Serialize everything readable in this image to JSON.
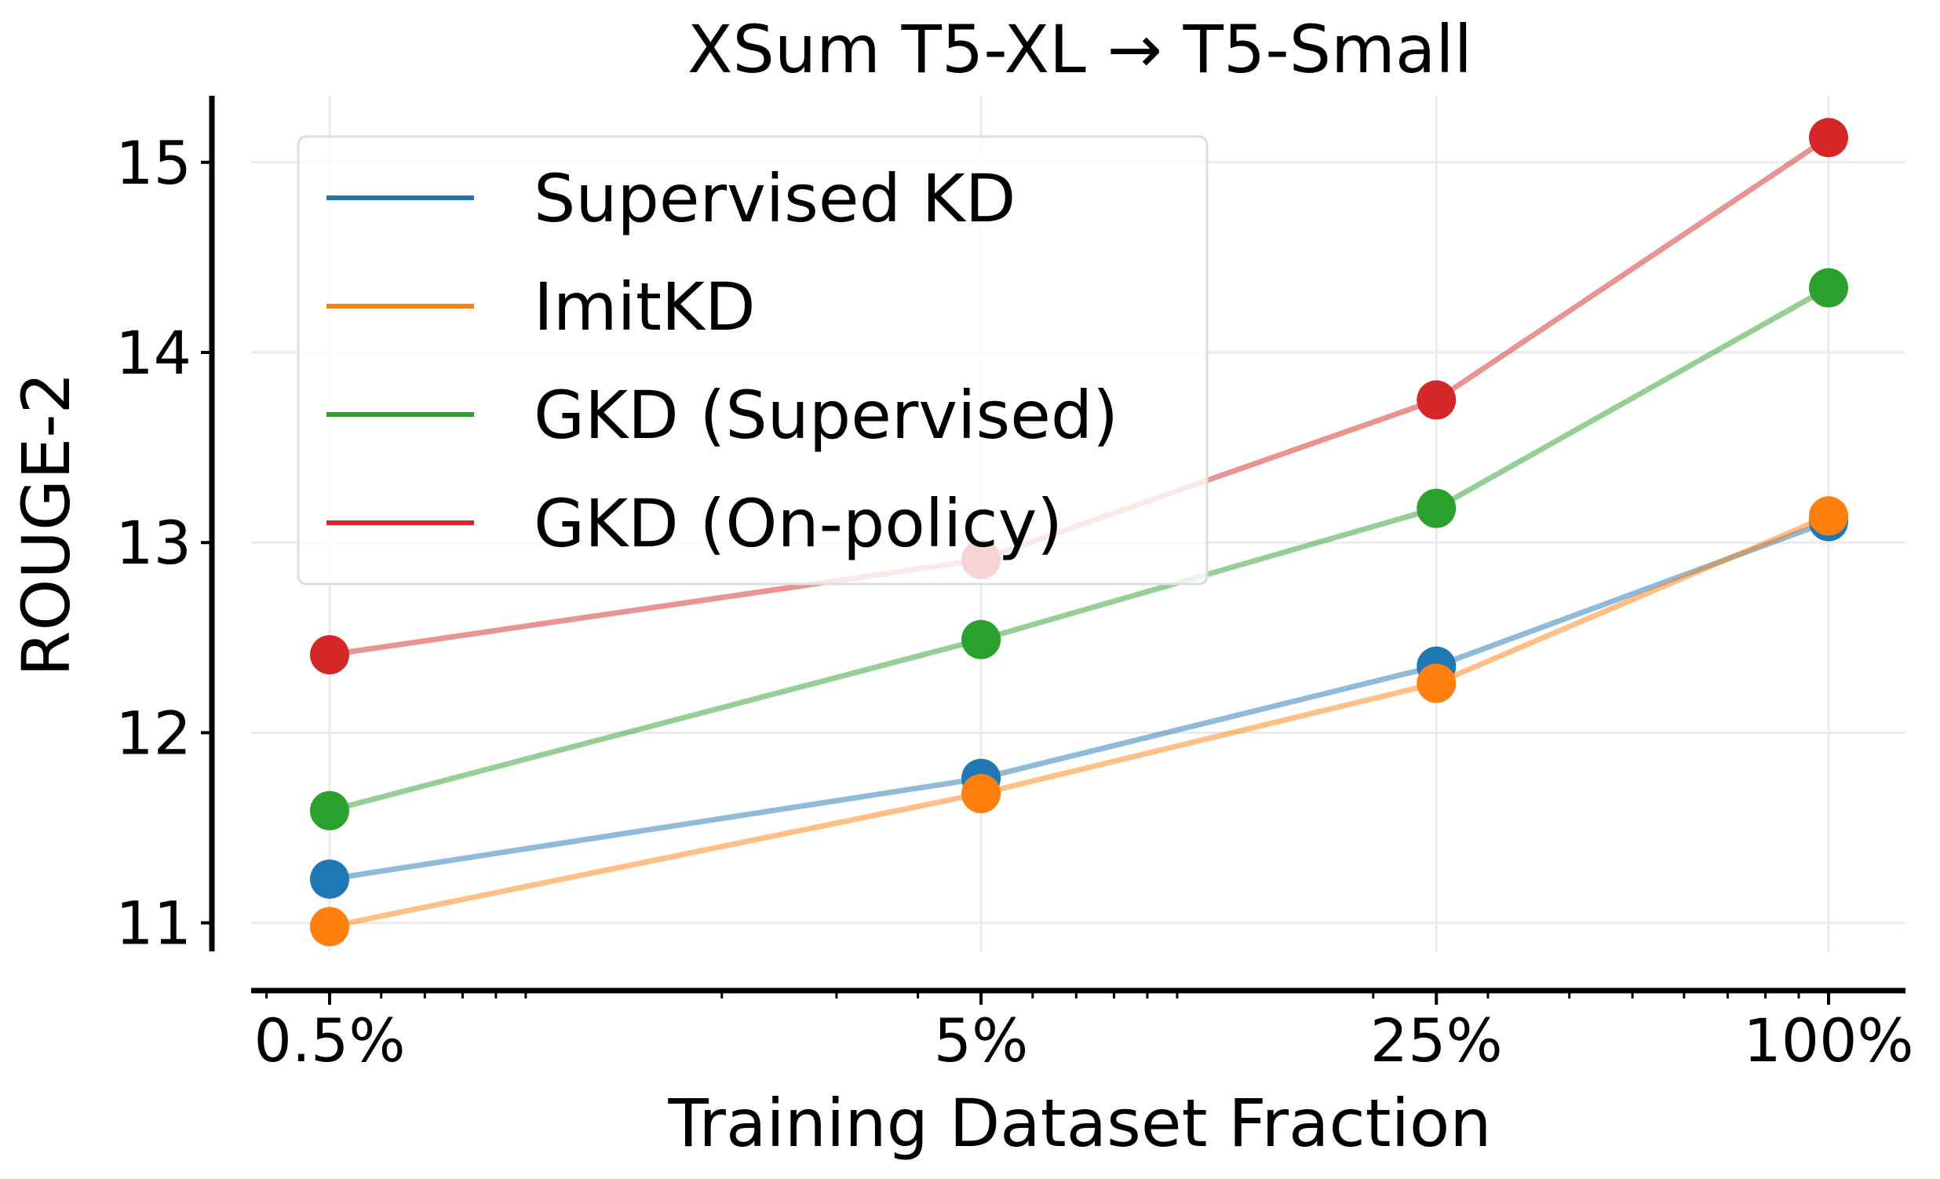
{
  "chart_data": {
    "type": "line",
    "title": "XSum T5-XL → T5-Small",
    "xlabel": "Training Dataset Fraction",
    "ylabel": "ROUGE-2",
    "x_scale": "log",
    "x": [
      0.5,
      5,
      25,
      100
    ],
    "xticks": [
      "0.5%",
      "5%",
      "25%",
      "100%"
    ],
    "yticks": [
      11,
      12,
      13,
      14,
      15
    ],
    "ylim": [
      10.85,
      15.35
    ],
    "grid": true,
    "legend": "top-left",
    "series": [
      {
        "name": "Supervised KD",
        "color": "#1f77b4",
        "values": [
          11.23,
          11.76,
          12.35,
          13.11
        ]
      },
      {
        "name": "ImitKD",
        "color": "#ff7f0e",
        "values": [
          10.98,
          11.68,
          12.26,
          13.14
        ]
      },
      {
        "name": "GKD (Supervised)",
        "color": "#2ca02c",
        "values": [
          11.59,
          12.49,
          13.18,
          14.34
        ]
      },
      {
        "name": "GKD (On-policy)",
        "color": "#d62728",
        "values": [
          12.41,
          12.91,
          13.75,
          15.13
        ]
      }
    ]
  }
}
